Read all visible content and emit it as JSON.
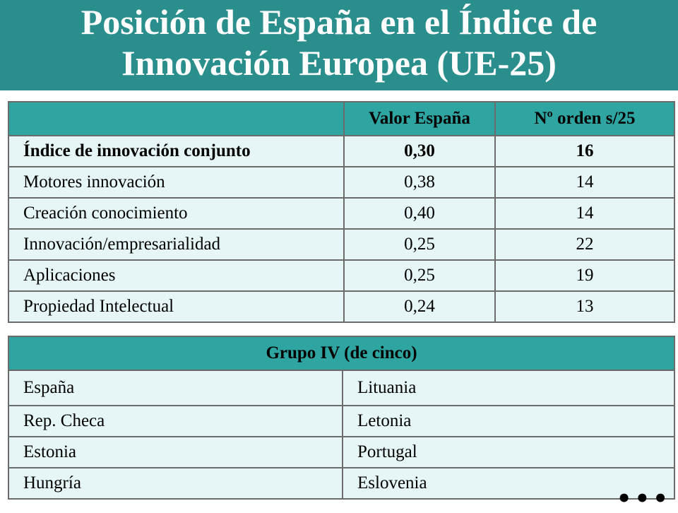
{
  "header": {
    "title_line1": "Posición de España en el Índice de",
    "title_line2": "Innovación Europea (UE-25)"
  },
  "indices_table": {
    "headers": [
      "",
      "Valor España",
      "Nº orden s/25"
    ],
    "rows": [
      {
        "label": "Índice de innovación conjunto",
        "valor": "0,30",
        "orden": "16"
      },
      {
        "label": "Motores innovación",
        "valor": "0,38",
        "orden": "14"
      },
      {
        "label": "Creación conocimiento",
        "valor": "0,40",
        "orden": "14"
      },
      {
        "label": "Innovación/empresarialidad",
        "valor": "0,25",
        "orden": "22"
      },
      {
        "label": "Aplicaciones",
        "valor": "0,25",
        "orden": "19"
      },
      {
        "label": "Propiedad Intelectual",
        "valor": "0,24",
        "orden": "13"
      }
    ]
  },
  "grupo_table": {
    "header": "Grupo IV (de cinco)",
    "rows": [
      [
        "España",
        "Lituania"
      ],
      [
        "Rep. Checa",
        "Letonia"
      ],
      [
        "Estonia",
        "Portugal"
      ],
      [
        "Hungría",
        "Eslovenia"
      ]
    ]
  },
  "footer": {
    "more_indicator": "•••"
  },
  "colors": {
    "title_bar": "#2a8f8c",
    "header_cell": "#2ea5a1",
    "body_cell": "#e6f6f6"
  }
}
